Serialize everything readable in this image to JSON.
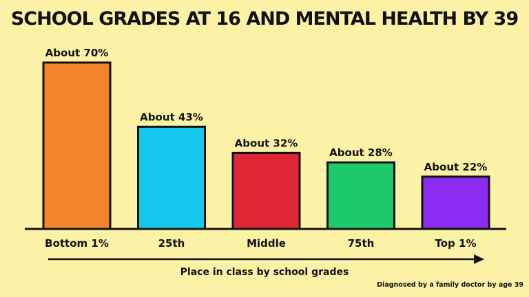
{
  "chart_data": {
    "type": "bar",
    "title": "SCHOOL GRADES AT 16 AND MENTAL HEALTH BY 39",
    "xlabel": "Place in class by school grades",
    "ylabel": "",
    "categories": [
      "Bottom 1%",
      "25th",
      "Middle",
      "75th",
      "Top 1%"
    ],
    "values": [
      70,
      43,
      32,
      28,
      22
    ],
    "data_labels": [
      "About 70%",
      "About 43%",
      "About 32%",
      "About 28%",
      "About 22%"
    ],
    "colors": [
      "#f5832a",
      "#15c9ee",
      "#de2634",
      "#1ec96b",
      "#8b2cf2"
    ],
    "ylim": [
      0,
      70
    ],
    "grid": false,
    "footnote": "Diagnosed by a family doctor by age 39"
  }
}
